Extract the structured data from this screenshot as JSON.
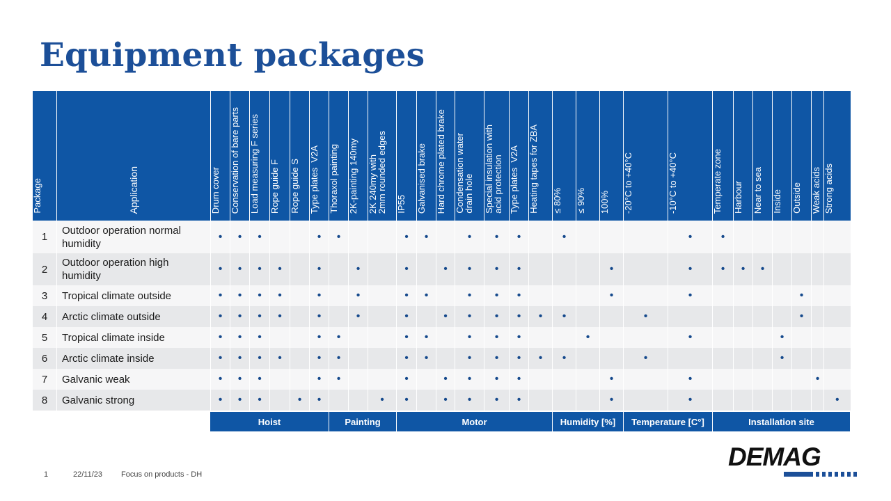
{
  "title": "Equipment packages",
  "table": {
    "package_header": "Package",
    "application_header": "Application",
    "columns": [
      "Drum cover",
      "Conservation of bare parts",
      "Load measuring F series",
      "Rope guide F",
      "Rope guide S",
      "Type plates  V2A",
      "Thoraxol painting",
      "2K-painting 140my",
      "2K 240my with\n2mm rounded edges",
      "IP55",
      "Galvanised brake",
      "Hard chrome plated brake",
      "Condensation water\ndrain hole",
      "Special insulation with\nacid protection",
      "Type plates  V2A",
      "Heating tapes for ZBA",
      "≤ 80%",
      "≤ 90%",
      "100%",
      "-20°C to +40°C",
      "-10°C to +40°C",
      "Temperate zone",
      "Harbour",
      "Near to sea",
      "Inside",
      "Outside",
      "Weak acids",
      "Strong acids"
    ],
    "rows": [
      {
        "package": "1",
        "application": "Outdoor operation normal humidity",
        "marks": [
          0,
          1,
          2,
          5,
          6,
          9,
          10,
          12,
          13,
          14,
          16,
          20,
          21
        ]
      },
      {
        "package": "2",
        "application": "Outdoor operation high humidity",
        "marks": [
          0,
          1,
          2,
          3,
          5,
          7,
          9,
          11,
          12,
          13,
          14,
          18,
          20,
          21,
          22,
          23
        ]
      },
      {
        "package": "3",
        "application": "Tropical climate outside",
        "marks": [
          0,
          1,
          2,
          3,
          5,
          7,
          9,
          10,
          12,
          13,
          14,
          18,
          20,
          25
        ]
      },
      {
        "package": "4",
        "application": "Arctic climate outside",
        "marks": [
          0,
          1,
          2,
          3,
          5,
          7,
          9,
          11,
          12,
          13,
          14,
          15,
          16,
          19,
          25
        ]
      },
      {
        "package": "5",
        "application": "Tropical climate inside",
        "marks": [
          0,
          1,
          2,
          5,
          6,
          9,
          10,
          12,
          13,
          14,
          17,
          20,
          24
        ]
      },
      {
        "package": "6",
        "application": "Arctic climate inside",
        "marks": [
          0,
          1,
          2,
          3,
          5,
          6,
          9,
          10,
          12,
          13,
          14,
          15,
          16,
          19,
          24
        ]
      },
      {
        "package": "7",
        "application": "Galvanic weak",
        "marks": [
          0,
          1,
          2,
          5,
          6,
          9,
          11,
          12,
          13,
          14,
          18,
          20,
          26
        ]
      },
      {
        "package": "8",
        "application": "Galvanic strong",
        "marks": [
          0,
          1,
          2,
          4,
          5,
          8,
          9,
          11,
          12,
          13,
          14,
          18,
          20,
          27
        ]
      }
    ],
    "dot_symbol": "•",
    "groups": [
      {
        "label": "Hoist",
        "span": 6
      },
      {
        "label": "Painting",
        "span": 3
      },
      {
        "label": "Motor",
        "span": 7
      },
      {
        "label": "Humidity [%]",
        "span": 3
      },
      {
        "label": "Temperature [C°]",
        "span": 2
      },
      {
        "label": "Installation site",
        "span": 7
      }
    ]
  },
  "footer": {
    "page_number": "1",
    "date": "22/11/23",
    "text": "Focus on products - DH"
  },
  "logo": {
    "text": "DEMAG",
    "color": "#1c4f98"
  },
  "colors": {
    "header_blue": "#0f56a5",
    "title_blue": "#1c4f98",
    "dot_blue": "#15498c",
    "row_light": "#f6f6f7",
    "row_dark": "#e7e8ea"
  }
}
